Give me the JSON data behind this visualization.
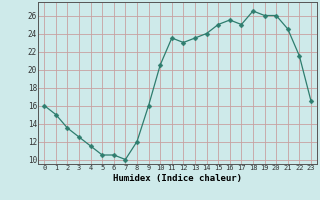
{
  "x": [
    0,
    1,
    2,
    3,
    4,
    5,
    6,
    7,
    8,
    9,
    10,
    11,
    12,
    13,
    14,
    15,
    16,
    17,
    18,
    19,
    20,
    21,
    22,
    23
  ],
  "y": [
    16,
    15,
    13.5,
    12.5,
    11.5,
    10.5,
    10.5,
    10,
    12,
    16,
    20.5,
    23.5,
    23,
    23.5,
    24,
    25,
    25.5,
    25,
    26.5,
    26,
    26,
    24.5,
    21.5,
    16.5
  ],
  "xlabel": "Humidex (Indice chaleur)",
  "xlim": [
    -0.5,
    23.5
  ],
  "ylim": [
    9.5,
    27.5
  ],
  "yticks": [
    10,
    12,
    14,
    16,
    18,
    20,
    22,
    24,
    26
  ],
  "xticks": [
    0,
    1,
    2,
    3,
    4,
    5,
    6,
    7,
    8,
    9,
    10,
    11,
    12,
    13,
    14,
    15,
    16,
    17,
    18,
    19,
    20,
    21,
    22,
    23
  ],
  "line_color": "#2e7d6e",
  "marker": "D",
  "marker_size": 2.5,
  "bg_color": "#ceeaea",
  "grid_color": "#c8a0a0",
  "figsize": [
    3.2,
    2.0
  ],
  "dpi": 100
}
